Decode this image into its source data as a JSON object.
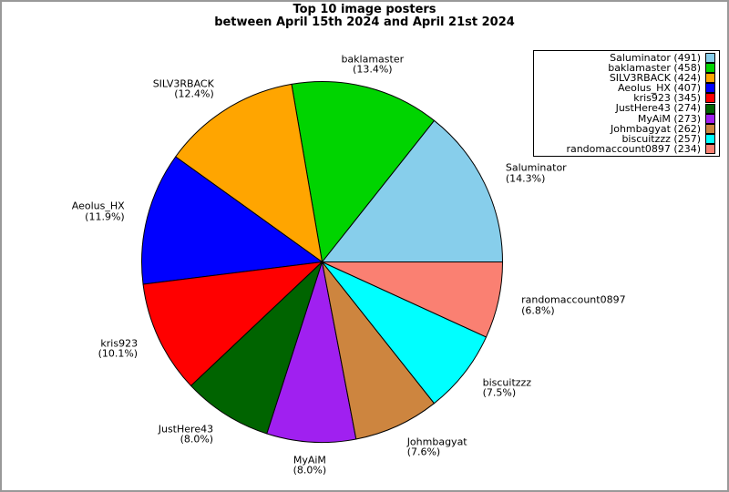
{
  "title": {
    "line1": "Top 10 image posters",
    "line2": "between April 15th 2024 and April 21st 2024"
  },
  "chart_data": {
    "type": "pie",
    "title": "Top 10 image posters between April 15th 2024 and April 21st 2024",
    "labels": [
      "Saluminator",
      "baklamaster",
      "SILV3RBACK",
      "Aeolus_HX",
      "kris923",
      "JustHere43",
      "MyAiM",
      "Johmbagyat",
      "biscuitzzz",
      "randomaccount0897"
    ],
    "counts": [
      491,
      458,
      424,
      407,
      345,
      274,
      273,
      262,
      257,
      234
    ],
    "percent_labels": [
      "14.3%",
      "13.4%",
      "12.4%",
      "11.9%",
      "10.1%",
      "8.0%",
      "8.0%",
      "7.6%",
      "7.5%",
      "6.8%"
    ],
    "colors": [
      "#87CEEB",
      "#00D400",
      "#FFA500",
      "#0000FF",
      "#FF0000",
      "#006400",
      "#A020F0",
      "#CD853F",
      "#00FFFF",
      "#FA8072"
    ],
    "edge_color": "#000000",
    "start_angle_deg": 0,
    "direction": "counterclockwise",
    "legend_position": "upper right",
    "frame_border_color": "#999999"
  }
}
